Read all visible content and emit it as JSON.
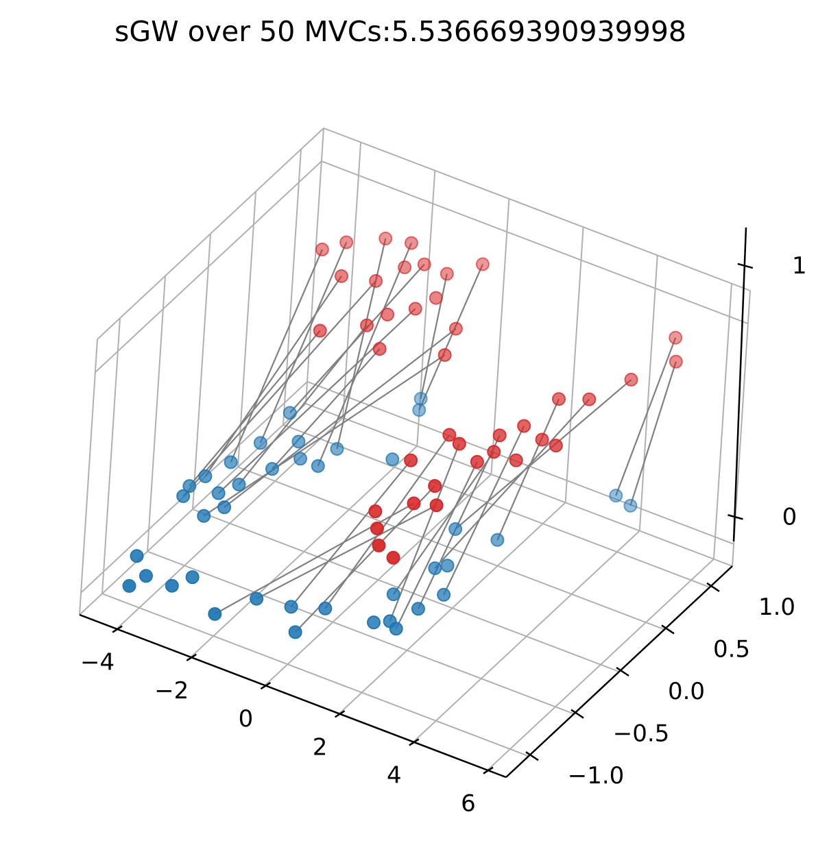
{
  "chart_data": {
    "type": "scatter",
    "subtype": "3d-scatter-with-matching-lines",
    "title": "sGW over 50 MVCs:5.536669390939998",
    "xlabel": "",
    "ylabel": "",
    "zlabel": "",
    "grid": true,
    "colors": {
      "target_points": "#d62728",
      "source_points": "#1f77b4",
      "match_lines": "#808080",
      "grid": "#b0b0b0",
      "axis": "#000000"
    },
    "axes": {
      "x": {
        "ticks": [
          -4,
          -2,
          0,
          2,
          4,
          6
        ],
        "tick_labels": [
          "−4",
          "−2",
          "0",
          "2",
          "4",
          "6"
        ]
      },
      "y": {
        "ticks": [
          -1.0,
          -0.5,
          0.0,
          0.5,
          1.0
        ],
        "tick_labels": [
          "−1.0",
          "−0.5",
          "0.0",
          "0.5",
          "1.0"
        ]
      },
      "z": {
        "ticks": [
          0,
          1
        ],
        "tick_labels": [
          "0",
          "1"
        ]
      }
    },
    "series": [
      {
        "name": "",
        "color": "#d62728",
        "points": [
          [
            0.2,
            0.9,
            1.0
          ],
          [
            -0.5,
            0.8,
            0.95
          ],
          [
            -1.0,
            0.75,
            0.98
          ],
          [
            -1.6,
            0.85,
            1.0
          ],
          [
            -2.4,
            0.9,
            0.95
          ],
          [
            -3.2,
            0.8,
            0.92
          ],
          [
            -3.6,
            0.7,
            0.9
          ],
          [
            -2.6,
            0.5,
            0.92
          ],
          [
            -1.8,
            0.55,
            0.93
          ],
          [
            -0.6,
            0.5,
            0.9
          ],
          [
            -1.4,
            0.3,
            0.85
          ],
          [
            -0.8,
            0.2,
            0.82
          ],
          [
            0.5,
            0.5,
            0.88
          ],
          [
            0.7,
            0.3,
            0.85
          ],
          [
            -2.4,
            0.2,
            0.8
          ],
          [
            5.4,
            0.9,
            1.0
          ],
          [
            5.9,
            0.7,
            1.0
          ],
          [
            5.2,
            0.5,
            0.95
          ],
          [
            4.8,
            0.2,
            0.95
          ],
          [
            4.0,
            0.2,
            0.9
          ],
          [
            3.8,
            -0.1,
            0.88
          ],
          [
            3.4,
            -0.2,
            0.85
          ],
          [
            3.5,
            -0.3,
            0.82
          ],
          [
            3.3,
            -0.4,
            0.8
          ],
          [
            2.8,
            -0.4,
            0.85
          ],
          [
            2.3,
            -0.3,
            0.82
          ],
          [
            2.0,
            -0.6,
            0.8
          ],
          [
            2.9,
            -0.7,
            0.78
          ],
          [
            3.2,
            -0.8,
            0.75
          ],
          [
            2.6,
            -0.8,
            0.72
          ],
          [
            4.3,
            -0.1,
            0.85
          ],
          [
            4.1,
            -0.3,
            0.82
          ],
          [
            4.9,
            -0.2,
            0.9
          ],
          [
            1.6,
            -0.8,
            0.62
          ],
          [
            1.9,
            -0.9,
            0.6
          ],
          [
            2.2,
            -1.0,
            0.58
          ],
          [
            2.6,
            -1.0,
            0.55
          ],
          [
            -1.4,
            0.7,
            0.96
          ],
          [
            -0.3,
            0.6,
            0.93
          ],
          [
            -1.1,
            0.4,
            0.88
          ]
        ]
      },
      {
        "name": "",
        "color": "#1f77b4",
        "points": [
          [
            -1.0,
            0.8,
            0.3
          ],
          [
            -1.2,
            0.9,
            0.3
          ],
          [
            -3.5,
            0.4,
            0.28
          ],
          [
            -2.0,
            0.1,
            0.25
          ],
          [
            -2.2,
            0.4,
            0.2
          ],
          [
            -4.0,
            0.3,
            0.15
          ],
          [
            -4.3,
            0.1,
            0.12
          ],
          [
            -4.5,
            -0.1,
            0.12
          ],
          [
            -4.6,
            -0.3,
            0.1
          ],
          [
            -3.9,
            -0.2,
            0.12
          ],
          [
            -3.6,
            -0.1,
            0.14
          ],
          [
            -3.2,
            0.1,
            0.16
          ],
          [
            -3.5,
            -0.3,
            0.12
          ],
          [
            -3.8,
            -0.4,
            0.1
          ],
          [
            -4.9,
            -0.1,
            0.05
          ],
          [
            4.1,
            0.9,
            0.2
          ],
          [
            4.5,
            0.9,
            0.18
          ],
          [
            1.5,
            0.2,
            0.15
          ],
          [
            1.7,
            -0.1,
            0.1
          ],
          [
            2.4,
            0.3,
            0.12
          ],
          [
            2.2,
            -0.2,
            0.05
          ],
          [
            2.0,
            -0.4,
            0.05
          ],
          [
            1.1,
            -0.3,
            0.02
          ],
          [
            1.9,
            -0.6,
            0.03
          ],
          [
            1.5,
            -0.5,
            0.0
          ],
          [
            0.0,
            -0.6,
            0.0
          ],
          [
            -0.9,
            -0.6,
            -0.05
          ],
          [
            -0.3,
            -0.8,
            -0.05
          ],
          [
            -1.6,
            -0.7,
            -0.02
          ],
          [
            -2.0,
            -1.0,
            0.0
          ],
          [
            -3.1,
            -0.8,
            0.02
          ],
          [
            -3.4,
            -0.9,
            0.0
          ],
          [
            -4.1,
            -0.9,
            0.0
          ],
          [
            -4.6,
            -0.8,
            0.02
          ],
          [
            -4.3,
            -1.0,
            -0.02
          ],
          [
            -0.5,
            0.3,
            0.3
          ],
          [
            1.8,
            0.0,
            0.08
          ],
          [
            1.3,
            -0.6,
            0.02
          ],
          [
            -2.7,
            0.2,
            0.2
          ],
          [
            -3.0,
            0.3,
            0.22
          ]
        ]
      }
    ],
    "match_line_count": 30
  }
}
